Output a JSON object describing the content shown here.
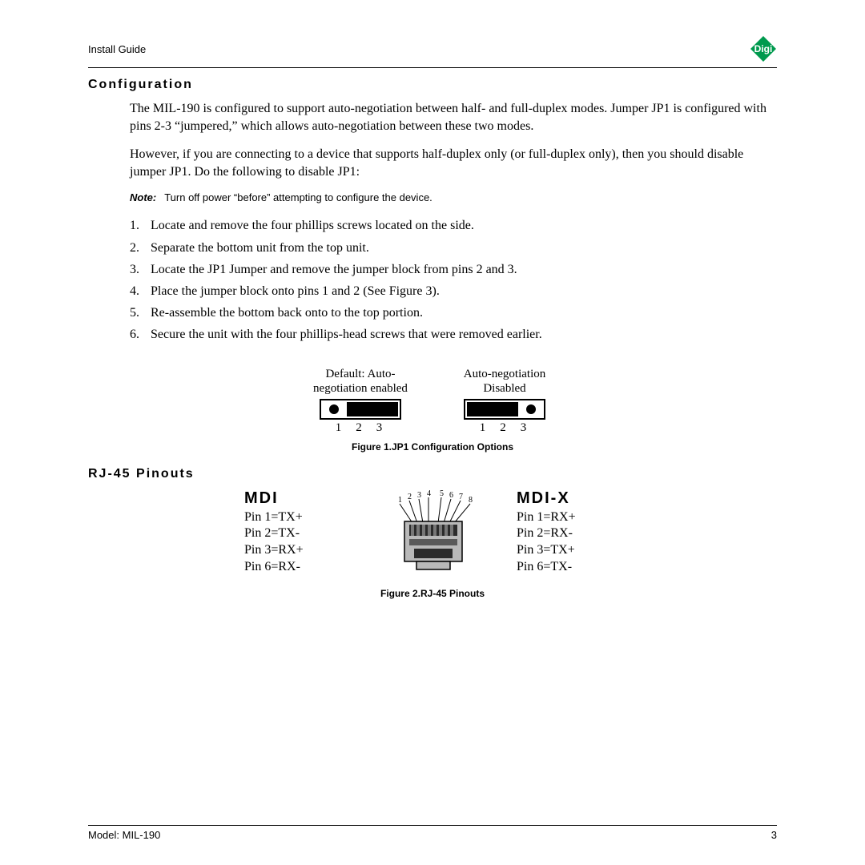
{
  "header": {
    "title": "Install Guide"
  },
  "logo": {
    "fill": "#009a4e",
    "text": "Digi",
    "text_color": "#ffffff"
  },
  "section1": {
    "heading": "Configuration",
    "para1": "The MIL-190 is configured to support auto-negotiation between half- and full-duplex modes. Jumper JP1 is configured with pins 2-3 “jumpered,” which allows auto-negotiation between these two modes.",
    "para2": "However, if you are connecting to a device that supports half-duplex only (or full-duplex only), then you should disable jumper JP1. Do the following to disable JP1:",
    "note_label": "Note:",
    "note_text": "Turn off power “before” attempting to configure the device.",
    "steps": [
      "Locate and remove the four phillips screws located on the side.",
      "Separate the bottom unit from the top unit.",
      "Locate the JP1 Jumper and remove the jumper block from pins 2 and 3.",
      "Place the jumper block onto pins 1 and 2 (See Figure 3).",
      "Re-assemble the bottom back onto to the top portion.",
      "Secure the unit with the four phillips-head screws that were removed earlier."
    ]
  },
  "figure1": {
    "left_label_line1": "Default: Auto-",
    "left_label_line2": "negotiation enabled",
    "right_label_line1": "Auto-negotiation",
    "right_label_line2": "Disabled",
    "pin_numbers": "123",
    "caption": "Figure 1.JP1 Configuration Options",
    "box_stroke": "#000000",
    "dot_fill": "#000000",
    "bar_fill": "#000000"
  },
  "section2": {
    "heading": "RJ-45 Pinouts",
    "mdi": {
      "title": "MDI",
      "pins": [
        "Pin 1=TX+",
        "Pin 2=TX-",
        "Pin 3=RX+",
        "Pin 6=RX-"
      ]
    },
    "mdix": {
      "title": "MDI-X",
      "pins": [
        "Pin 1=RX+",
        "Pin 2=RX-",
        "Pin 3=TX+",
        "Pin 6=TX-"
      ]
    },
    "connector_numbers": [
      "1",
      "2",
      "3",
      "4",
      "5",
      "6",
      "7",
      "8"
    ],
    "caption": "Figure 2.RJ-45 Pinouts",
    "connector": {
      "body_fill": "#b9b9b9",
      "body_stroke": "#000000",
      "contact_fill": "#2b2b2b",
      "band_fill": "#5a5a5a",
      "wire_stroke": "#000000"
    }
  },
  "footer": {
    "model": "Model: MIL-190",
    "page": "3"
  }
}
